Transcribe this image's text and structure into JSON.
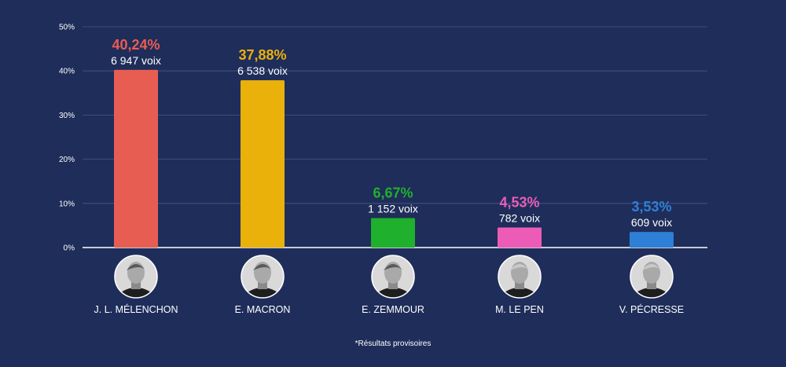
{
  "chart_data": {
    "type": "bar",
    "categories": [
      "J. L. Mélenchon",
      "E. Macron",
      "E. Zemmour",
      "M. Le Pen",
      "V. Pécresse"
    ],
    "values": [
      40.24,
      37.88,
      6.67,
      4.53,
      3.53
    ],
    "value_labels": [
      "40,24%",
      "37,88%",
      "6,67%",
      "4,53%",
      "3,53%"
    ],
    "votes": [
      "6 947 voix",
      "6 538 voix",
      "1 152 voix",
      "782 voix",
      "609 voix"
    ],
    "colors": [
      "#e85d52",
      "#e9b10a",
      "#1fb02d",
      "#ec5cb7",
      "#2e7fd6"
    ],
    "y_ticks": [
      "0%",
      "10%",
      "20%",
      "30%",
      "40%",
      "50%"
    ],
    "ylim": [
      0,
      50
    ],
    "grid": true,
    "background": "#1f2d5a",
    "avatar_icons": [
      "portrait-melenchon-icon",
      "portrait-macron-icon",
      "portrait-zemmour-icon",
      "portrait-le-pen-icon",
      "portrait-pecresse-icon"
    ]
  },
  "footnote": "*Résultats provisoires"
}
